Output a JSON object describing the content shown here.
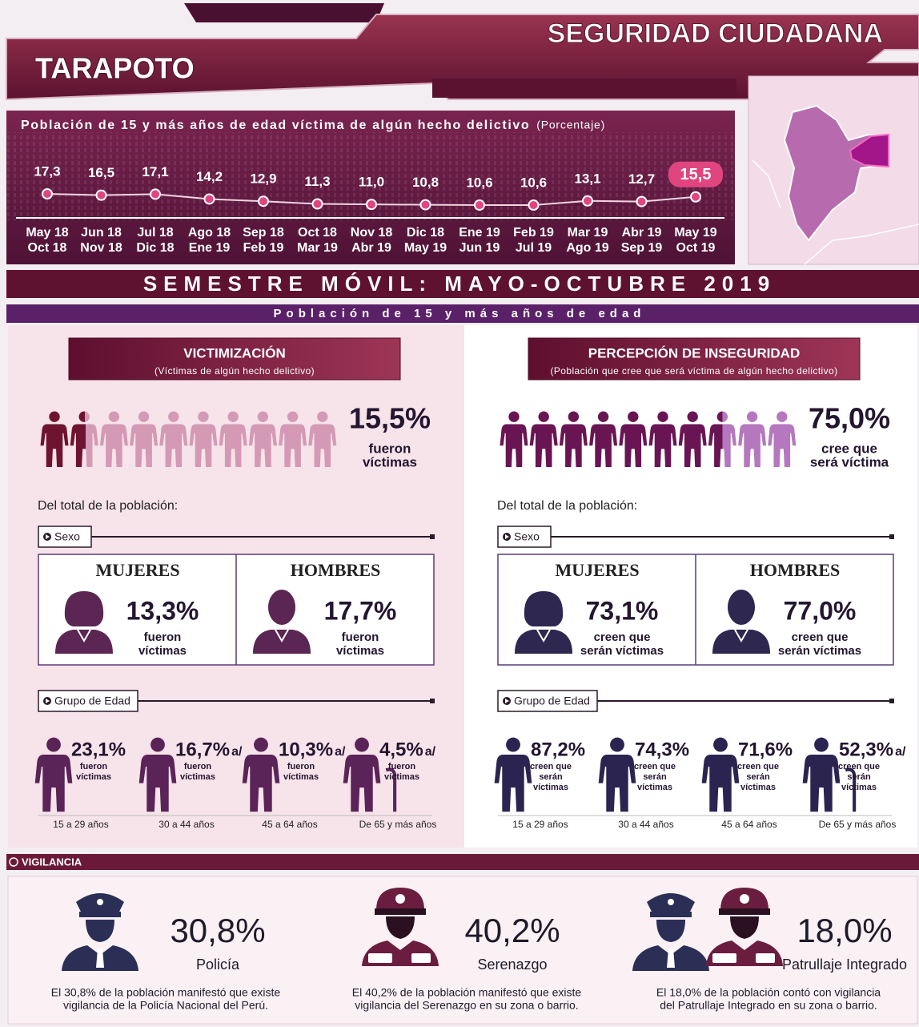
{
  "header": {
    "title": "SEGURIDAD CIUDADANA",
    "city": "TARAPOTO"
  },
  "chart_data": {
    "type": "line",
    "title": "Población de 15 y más años de edad víctima de algún hecho delictivo",
    "subtitle": "(Porcentaje)",
    "categories": [
      [
        "May 18",
        "Oct 18"
      ],
      [
        "Jun 18",
        "Nov 18"
      ],
      [
        "Jul 18",
        "Dic 18"
      ],
      [
        "Ago 18",
        "Ene 19"
      ],
      [
        "Sep 18",
        "Feb 19"
      ],
      [
        "Oct 18",
        "Mar 19"
      ],
      [
        "Nov 18",
        "Abr 19"
      ],
      [
        "Dic 18",
        "May 19"
      ],
      [
        "Ene 19",
        "Jun 19"
      ],
      [
        "Feb 19",
        "Jul 19"
      ],
      [
        "Mar 19",
        "Ago 19"
      ],
      [
        "Abr 19",
        "Sep 19"
      ],
      [
        "May 19",
        "Oct 19"
      ]
    ],
    "values": [
      17.3,
      16.5,
      17.1,
      14.2,
      12.9,
      11.3,
      11.0,
      10.8,
      10.6,
      10.6,
      13.1,
      12.7,
      15.5
    ],
    "value_labels": [
      "17,3",
      "16,5",
      "17,1",
      "14,2",
      "12,9",
      "11,3",
      "11,0",
      "10,8",
      "10,6",
      "10,6",
      "13,1",
      "12,7",
      "15,5"
    ],
    "color": "#e0457f"
  },
  "semester": {
    "title": "SEMESTRE MÓVIL: MAYO-OCTUBRE 2019",
    "subtitle": "Población de 15 y más años de edad"
  },
  "panels": [
    {
      "heading": "VICTIMIZACIÓN",
      "subheading": "(Víctimas de algún hecho delictivo)",
      "value": 15.5,
      "value_label": "15,5%",
      "caption": [
        "fueron",
        "víctimas"
      ],
      "total_text": "Del total de la población:",
      "sex_label": "Sexo",
      "sex": [
        {
          "name": "MUJERES",
          "value": "13,3%",
          "caption": [
            "fueron",
            "víctimas"
          ]
        },
        {
          "name": "HOMBRES",
          "value": "17,7%",
          "caption": [
            "fueron",
            "víctimas"
          ]
        }
      ],
      "age_label": "Grupo de Edad",
      "ages": [
        {
          "value": "23,1%",
          "caption": [
            "fueron",
            "víctimas"
          ],
          "age": "15 a 29 años"
        },
        {
          "value": "16,7%",
          "note": "a/",
          "caption": [
            "fueron",
            "víctimas"
          ],
          "age": "30 a 44 años"
        },
        {
          "value": "10,3%",
          "note": "a/",
          "caption": [
            "fueron",
            "víctimas"
          ],
          "age": "45 a 64 años"
        },
        {
          "value": "4,5%",
          "note": "a/",
          "caption": [
            "fueron",
            "víctimas"
          ],
          "age": "De 65 y más años"
        }
      ]
    },
    {
      "heading": "PERCEPCIÓN DE INSEGURIDAD",
      "subheading": "(Población que cree que será víctima de algún hecho delictivo)",
      "value": 75.0,
      "value_label": "75,0%",
      "caption": [
        "cree que",
        "será víctima"
      ],
      "total_text": "Del total de la población:",
      "sex_label": "Sexo",
      "sex": [
        {
          "name": "MUJERES",
          "value": "73,1%",
          "caption": [
            "creen que",
            "serán víctimas"
          ]
        },
        {
          "name": "HOMBRES",
          "value": "77,0%",
          "caption": [
            "creen que",
            "serán víctimas"
          ]
        }
      ],
      "age_label": "Grupo de Edad",
      "ages": [
        {
          "value": "87,2%",
          "caption": [
            "creen que",
            "serán",
            "víctimas"
          ],
          "age": "15 a 29 años"
        },
        {
          "value": "74,3%",
          "caption": [
            "creen que",
            "serán",
            "víctimas"
          ],
          "age": "30 a 44 años"
        },
        {
          "value": "71,6%",
          "caption": [
            "creen que",
            "serán",
            "víctimas"
          ],
          "age": "45 a 64 años"
        },
        {
          "value": "52,3%",
          "note": "a/",
          "caption": [
            "creen que",
            "serán",
            "víctimas"
          ],
          "age": "De 65 y más años"
        }
      ]
    }
  ],
  "vigilance": {
    "title": "VIGILANCIA",
    "items": [
      {
        "value": "30,8%",
        "label": "Policía",
        "text": [
          "El 30,8% de la población manifestó que existe",
          "vigilancia de la Policía Nacional del Perú."
        ]
      },
      {
        "value": "40,2%",
        "label": "Serenazgo",
        "text": [
          "El 40,2% de la población manifestó que existe",
          "vigilancia del Serenazgo en su zona o barrio."
        ]
      },
      {
        "value": "18,0%",
        "label": "Patrullaje Integrado",
        "text": [
          "El 18,0% de la población contó con vigilancia",
          "del Patrullaje Integrado en su zona o barrio."
        ]
      }
    ]
  }
}
